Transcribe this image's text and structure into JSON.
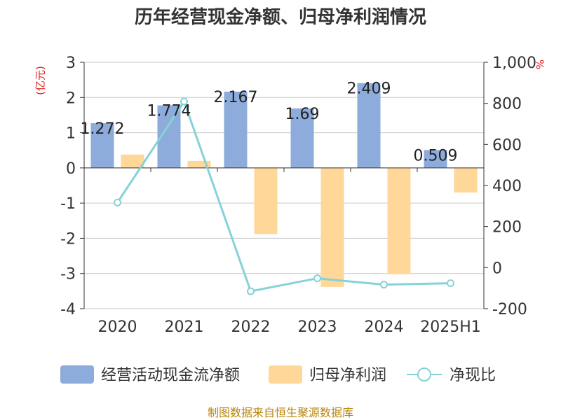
{
  "title": "历年经营现金净额、归母净利润情况",
  "left_unit": "(亿元)",
  "right_unit": "%",
  "source": "制图数据来自恒生聚源数据库",
  "colors": {
    "cash_flow": "#8eacdb",
    "net_profit": "#ffd798",
    "ratio": "#86d2d6",
    "title": "#333333",
    "unit": "#e0201c",
    "source": "#b8860b"
  },
  "chart_data": {
    "type": "bar",
    "categories": [
      "2020",
      "2021",
      "2022",
      "2023",
      "2024",
      "2025H1"
    ],
    "series": [
      {
        "name": "经营活动现金流净额",
        "type": "bar",
        "axis": "left",
        "values": [
          1.272,
          1.774,
          2.167,
          1.69,
          2.409,
          0.509
        ],
        "labels": [
          "1.272",
          "1.774",
          "2.167",
          "1.69",
          "2.409",
          "0.509"
        ]
      },
      {
        "name": "归母净利润",
        "type": "bar",
        "axis": "left",
        "values": [
          0.38,
          0.2,
          -1.88,
          -3.38,
          -3.02,
          -0.7
        ]
      },
      {
        "name": "净现比",
        "type": "line",
        "axis": "right",
        "values": [
          317,
          809,
          -115,
          -52,
          -83,
          -76
        ]
      }
    ],
    "y_left": {
      "min": -4,
      "max": 3,
      "ticks": [
        "3",
        "2",
        "1",
        "0",
        "-1",
        "-2",
        "-3",
        "-4"
      ]
    },
    "y_right": {
      "min": -200,
      "max": 1000,
      "ticks": [
        "1,000",
        "800",
        "600",
        "400",
        "200",
        "0",
        "-200"
      ]
    },
    "legend_position": "bottom",
    "grid": true
  }
}
